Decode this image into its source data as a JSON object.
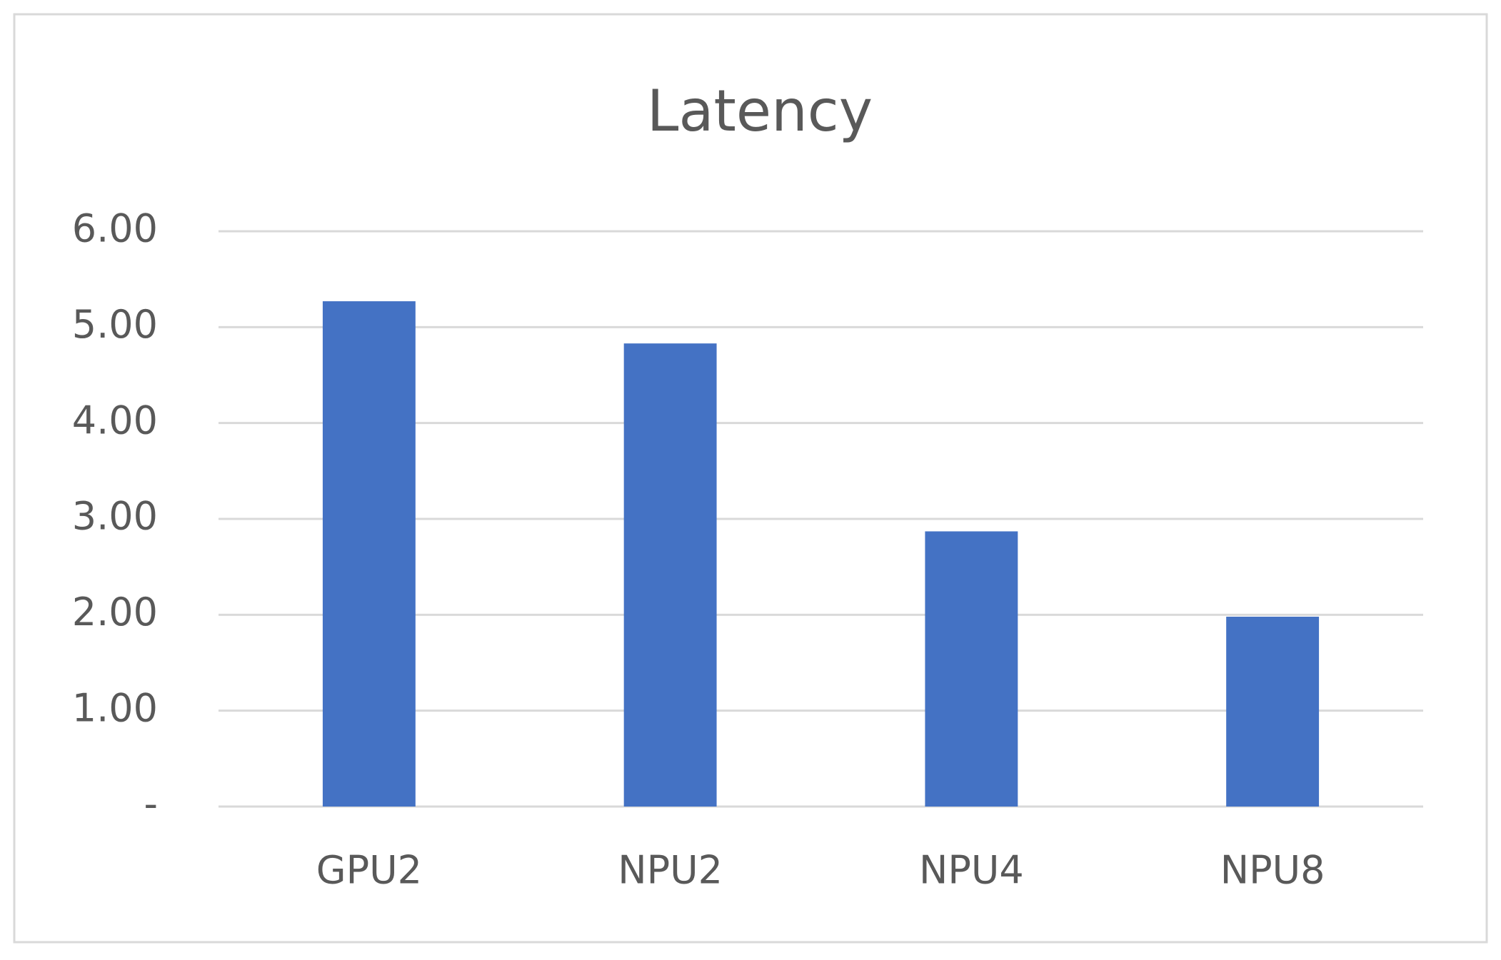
{
  "chart_data": {
    "type": "bar",
    "title": "Latency",
    "categories": [
      "GPU2",
      "NPU2",
      "NPU4",
      "NPU8"
    ],
    "values": [
      5.27,
      4.83,
      2.87,
      1.98
    ],
    "color": "#4472c4",
    "ylim": [
      0,
      6
    ],
    "yticks": [
      {
        "value": 0,
        "label": "-"
      },
      {
        "value": 1,
        "label": "1.00"
      },
      {
        "value": 2,
        "label": "2.00"
      },
      {
        "value": 3,
        "label": "3.00"
      },
      {
        "value": 4,
        "label": "4.00"
      },
      {
        "value": 5,
        "label": "5.00"
      },
      {
        "value": 6,
        "label": "6.00"
      }
    ],
    "grid": true
  }
}
